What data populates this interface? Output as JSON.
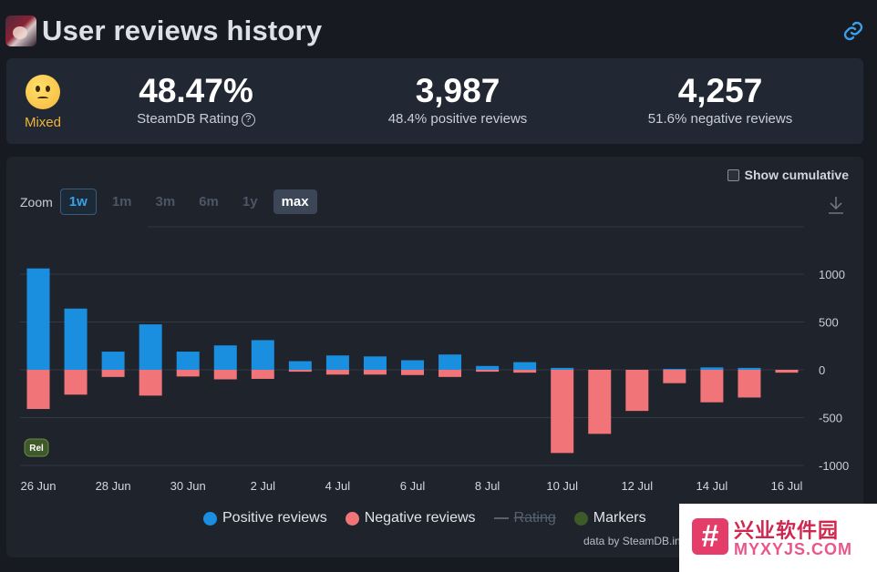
{
  "header": {
    "title": "User reviews history",
    "avatar_icon": "game-avatar-icon",
    "link_icon": "link-icon"
  },
  "summary": {
    "label": "Mixed",
    "rating_value": "48.47%",
    "rating_label": "SteamDB Rating",
    "help_glyph": "?",
    "positive_value": "3,987",
    "positive_label": "48.4% positive reviews",
    "negative_value": "4,257",
    "negative_label": "51.6% negative reviews"
  },
  "controls": {
    "cumulative_label": "Show cumulative",
    "zoom_label": "Zoom",
    "zoom_options": [
      "1w",
      "1m",
      "3m",
      "6m",
      "1y",
      "max"
    ]
  },
  "legend": {
    "positive": "Positive reviews",
    "negative": "Negative reviews",
    "rating": "Rating",
    "markers": "Markers"
  },
  "credit": "data by SteamDB.in",
  "watermark": {
    "cn": "兴业软件园",
    "en": "MYXYJS.COM"
  },
  "colors": {
    "positive": "#1a8fe0",
    "negative": "#f07478",
    "marker": "#3e5a28"
  },
  "chart_data": {
    "type": "bar",
    "categories": [
      "26 Jun",
      "27 Jun",
      "28 Jun",
      "29 Jun",
      "30 Jun",
      "1 Jul",
      "2 Jul",
      "3 Jul",
      "4 Jul",
      "5 Jul",
      "6 Jul",
      "7 Jul",
      "8 Jul",
      "9 Jul",
      "10 Jul",
      "11 Jul",
      "12 Jul",
      "13 Jul",
      "14 Jul",
      "15 Jul",
      "16 Jul"
    ],
    "x_tick_labels": [
      "26 Jun",
      "28 Jun",
      "30 Jun",
      "2 Jul",
      "4 Jul",
      "6 Jul",
      "8 Jul",
      "10 Jul",
      "12 Jul",
      "14 Jul",
      "16 Jul"
    ],
    "series": [
      {
        "name": "Positive reviews",
        "values": [
          1060,
          640,
          190,
          475,
          190,
          255,
          310,
          90,
          150,
          140,
          100,
          160,
          40,
          80,
          20,
          0,
          0,
          10,
          25,
          20,
          0
        ]
      },
      {
        "name": "Negative reviews",
        "values": [
          -410,
          -260,
          -75,
          -270,
          -70,
          -100,
          -95,
          -20,
          -50,
          -50,
          -55,
          -75,
          -20,
          -30,
          -870,
          -670,
          -430,
          -140,
          -340,
          -290,
          -30
        ]
      }
    ],
    "ylim": [
      -1000,
      1000
    ],
    "y_ticks": [
      1000,
      500,
      0,
      -500,
      -1000
    ],
    "y_tick_labels": [
      "1000",
      "500",
      "0",
      "-500",
      "-1000"
    ],
    "grid": true,
    "legend_position": "bottom-center",
    "markers": [
      {
        "label": "Rel",
        "x": "26 Jun"
      }
    ]
  }
}
